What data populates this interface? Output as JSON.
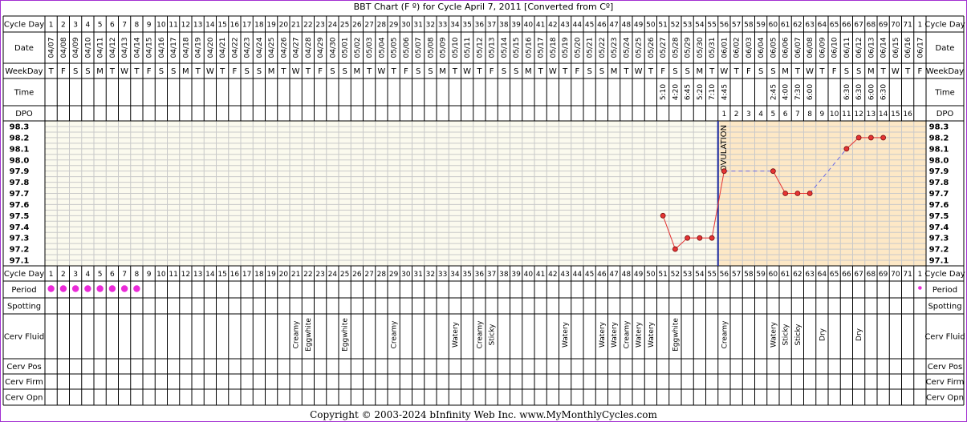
{
  "title": "BBT Chart (F º) for Cycle April 7, 2011  [Converted from Cº]",
  "copyright": "Copyright © 2003-2024 bInfinity Web Inc.     www.MyMonthlyCycles.com",
  "row_labels": {
    "cycle_day": "Cycle Day",
    "date": "Date",
    "weekday": "WeekDay",
    "time": "Time",
    "dpo": "DPO",
    "period": "Period",
    "spotting": "Spotting",
    "cerv_fluid": "Cerv Fluid",
    "cerv_pos": "Cerv Pos",
    "cerv_firm": "Cerv Firm",
    "cerv_opn": "Cerv Opn"
  },
  "ovulation_label": "OVULATION",
  "colors": {
    "border": "#a22fd1",
    "pre_ovulation_bg": "#fbfaee",
    "post_ovulation_bg": "#fde8c6",
    "grid": "#c9c9c9",
    "temp_line": "#e53333",
    "temp_gap_line": "#6a6ae6",
    "ovulation_line": "#1b2ba0",
    "period_dot": "#ea2ad8"
  },
  "chart_data": {
    "type": "line",
    "title": "BBT Chart (F º) for Cycle April 7, 2011  [Converted from Cº]",
    "ylabel": "",
    "ylim": [
      97.1,
      98.3
    ],
    "y_ticks": [
      "98.3",
      "98.2",
      "98.1",
      "98.0",
      "97.9",
      "97.8",
      "97.7",
      "97.6",
      "97.5",
      "97.4",
      "97.3",
      "97.2",
      "97.1"
    ],
    "cycle_days": [
      "1",
      "2",
      "3",
      "4",
      "5",
      "6",
      "7",
      "8",
      "9",
      "10",
      "11",
      "12",
      "13",
      "14",
      "15",
      "16",
      "17",
      "18",
      "19",
      "20",
      "21",
      "22",
      "23",
      "24",
      "25",
      "26",
      "27",
      "28",
      "29",
      "30",
      "31",
      "32",
      "33",
      "34",
      "35",
      "36",
      "37",
      "38",
      "39",
      "40",
      "41",
      "42",
      "43",
      "44",
      "45",
      "46",
      "47",
      "48",
      "49",
      "50",
      "51",
      "52",
      "53",
      "54",
      "55",
      "56",
      "57",
      "58",
      "59",
      "60",
      "61",
      "62",
      "63",
      "64",
      "65",
      "66",
      "67",
      "68",
      "69",
      "70",
      "71",
      "1"
    ],
    "dates": [
      "04/07",
      "04/08",
      "04/09",
      "04/10",
      "04/11",
      "04/12",
      "04/13",
      "04/14",
      "04/15",
      "04/16",
      "04/17",
      "04/18",
      "04/19",
      "04/20",
      "04/21",
      "04/22",
      "04/23",
      "04/24",
      "04/25",
      "04/26",
      "04/27",
      "04/28",
      "04/29",
      "04/30",
      "05/01",
      "05/02",
      "05/03",
      "05/04",
      "05/05",
      "05/06",
      "05/07",
      "05/08",
      "05/09",
      "05/10",
      "05/11",
      "05/12",
      "05/13",
      "05/14",
      "05/15",
      "05/16",
      "05/17",
      "05/18",
      "05/19",
      "05/20",
      "05/21",
      "05/22",
      "05/23",
      "05/24",
      "05/25",
      "05/26",
      "05/27",
      "05/28",
      "05/29",
      "05/30",
      "05/31",
      "06/01",
      "06/02",
      "06/03",
      "06/04",
      "06/05",
      "06/06",
      "06/07",
      "06/08",
      "06/09",
      "06/10",
      "06/11",
      "06/12",
      "06/13",
      "06/14",
      "06/15",
      "06/16",
      "06/17"
    ],
    "weekdays": [
      "T",
      "F",
      "S",
      "S",
      "M",
      "T",
      "W",
      "T",
      "F",
      "S",
      "S",
      "M",
      "T",
      "W",
      "T",
      "F",
      "S",
      "S",
      "M",
      "T",
      "W",
      "T",
      "F",
      "S",
      "S",
      "M",
      "T",
      "W",
      "T",
      "F",
      "S",
      "S",
      "M",
      "T",
      "W",
      "T",
      "F",
      "S",
      "S",
      "M",
      "T",
      "W",
      "T",
      "F",
      "S",
      "S",
      "M",
      "T",
      "W",
      "T",
      "F",
      "S",
      "S",
      "M",
      "T",
      "W",
      "T",
      "F",
      "S",
      "S",
      "M",
      "T",
      "W",
      "T",
      "F",
      "S",
      "S",
      "M",
      "T",
      "W",
      "T",
      "F"
    ],
    "times": {
      "51": "5:10",
      "52": "4:20",
      "53": "6:45",
      "54": "5:20",
      "55": "7:10",
      "56": "4:45",
      "60": "2:45",
      "61": "4:00",
      "62": "7:30",
      "63": "6:00",
      "66": "6:30",
      "67": "6:30",
      "68": "6:00",
      "69": "6:30"
    },
    "dpo": {
      "56": "1",
      "57": "2",
      "58": "3",
      "59": "4",
      "60": "5",
      "61": "6",
      "62": "7",
      "63": "8",
      "64": "9",
      "65": "10",
      "66": "11",
      "67": "12",
      "68": "13",
      "69": "14",
      "70": "15",
      "71": "16"
    },
    "temperatures": [
      {
        "index": 51,
        "temp": 97.5
      },
      {
        "index": 52,
        "temp": 97.2
      },
      {
        "index": 53,
        "temp": 97.3
      },
      {
        "index": 54,
        "temp": 97.3
      },
      {
        "index": 55,
        "temp": 97.3
      },
      {
        "index": 56,
        "temp": 97.9
      },
      {
        "index": 60,
        "temp": 97.9
      },
      {
        "index": 61,
        "temp": 97.7
      },
      {
        "index": 62,
        "temp": 97.7
      },
      {
        "index": 63,
        "temp": 97.7
      },
      {
        "index": 66,
        "temp": 98.1
      },
      {
        "index": 67,
        "temp": 98.2
      },
      {
        "index": 68,
        "temp": 98.2
      },
      {
        "index": 69,
        "temp": 98.2
      }
    ],
    "ovulation_after_index": 55,
    "period_days": [
      1,
      2,
      3,
      4,
      5,
      6,
      7,
      8
    ],
    "period_light_days": [
      72
    ],
    "cervical_fluid": {
      "21": "Creamy",
      "22": "Eggwhite",
      "25": "Eggwhite",
      "29": "Creamy",
      "34": "Watery",
      "36": "Creamy",
      "37": "Sticky",
      "43": "Watery",
      "46": "Watery",
      "47": "Watery",
      "48": "Creamy",
      "49": "Watery",
      "50": "Watery",
      "52": "Eggwhite",
      "56": "Creamy",
      "60": "Watery",
      "61": "Sticky",
      "62": "Sticky",
      "64": "Dry",
      "67": "Dry"
    }
  }
}
